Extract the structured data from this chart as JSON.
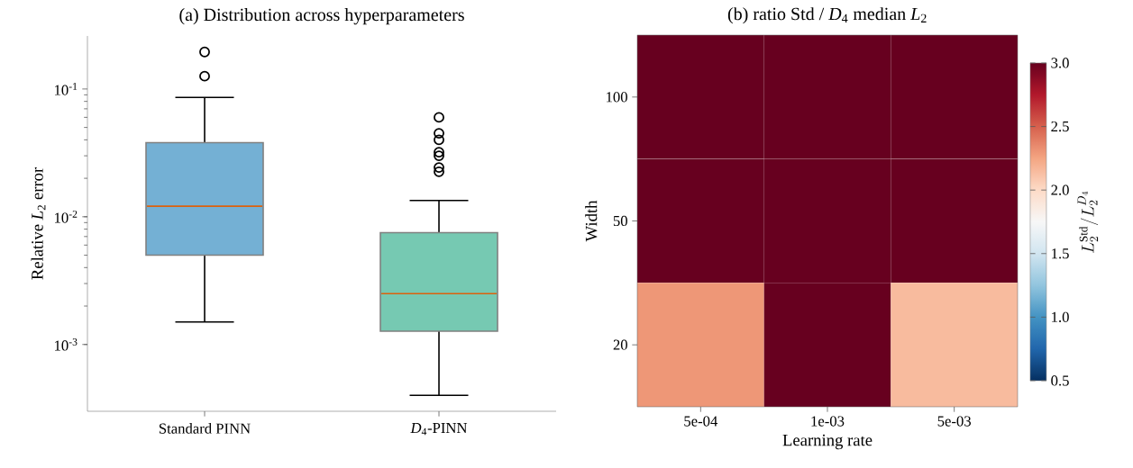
{
  "chart_data": [
    {
      "type": "box",
      "title": "(a) Distribution across hyperparameters",
      "ylabel": "Relative *L*$_{2}$ error",
      "categories": [
        "Standard PINN",
        "*D*$_{4}$-PINN"
      ],
      "colors": [
        "#74b0d4",
        "#76c9b2"
      ],
      "boxes": [
        {
          "low": 0.0015,
          "q1": 0.005,
          "median": 0.0121,
          "q3": 0.038,
          "high": 0.086,
          "outliers": [
            0.126,
            0.195
          ]
        },
        {
          "low": 0.0004,
          "q1": 0.00127,
          "median": 0.0025,
          "q3": 0.0075,
          "high": 0.0134,
          "outliers": [
            0.0225,
            0.0243,
            0.03,
            0.032,
            0.04,
            0.045,
            0.06
          ]
        }
      ],
      "log": "y",
      "ylim": [
        0.0003,
        0.26
      ],
      "yticks": [
        {
          "value": 0.001,
          "label": "10$^{-3}$"
        },
        {
          "value": 0.01,
          "label": "10$^{-2}$"
        },
        {
          "value": 0.1,
          "label": "10$^{-1}$"
        }
      ]
    },
    {
      "type": "heatmap",
      "title": "(b) ratio Std / *D*$_{4}$ median *L*$_{2}$",
      "xlabel": "Learning rate",
      "ylabel": "Width",
      "categories": [
        "5e-04",
        "1e-03",
        "5e-03"
      ],
      "y_categories": [
        "100",
        "50",
        "20"
      ],
      "cells": [
        [
          3.0,
          3.0,
          3.0
        ],
        [
          3.0,
          3.0,
          3.0
        ],
        [
          2.3,
          3.0,
          2.15
        ]
      ],
      "clim": [
        0.5,
        3.0
      ],
      "cticks": [
        {
          "value": 0.5,
          "label": "0.5"
        },
        {
          "value": 1.0,
          "label": "1.0"
        },
        {
          "value": 1.5,
          "label": "1.5"
        },
        {
          "value": 2.0,
          "label": "2.0"
        },
        {
          "value": 2.5,
          "label": "2.5"
        },
        {
          "value": 3.0,
          "label": "3.0"
        }
      ],
      "clabel": "L_2^{\\mathrm{Std}}/L_2^{D_4}"
    }
  ]
}
